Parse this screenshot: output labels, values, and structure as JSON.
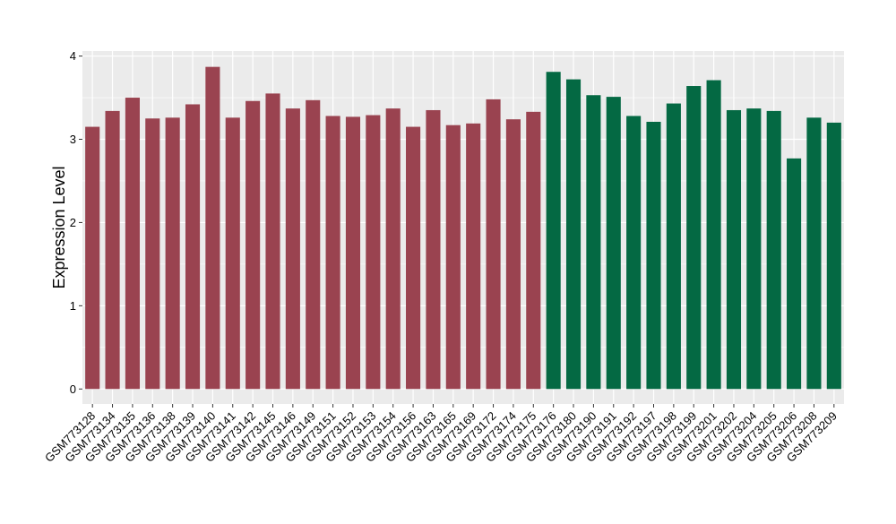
{
  "chart_data": {
    "type": "bar",
    "ylabel": "Expression Level",
    "xlabel": "",
    "title": "",
    "ylim": [
      -0.18,
      4.06
    ],
    "yticks": [
      0,
      1,
      2,
      3,
      4
    ],
    "grid": true,
    "colors": {
      "group_a": "#9a4350",
      "group_b": "#046943",
      "panel": "#ebebeb",
      "grid": "#ffffff"
    },
    "categories": [
      "GSM773128",
      "GSM773134",
      "GSM773135",
      "GSM773136",
      "GSM773138",
      "GSM773139",
      "GSM773140",
      "GSM773141",
      "GSM773142",
      "GSM773145",
      "GSM773146",
      "GSM773149",
      "GSM773151",
      "GSM773152",
      "GSM773153",
      "GSM773154",
      "GSM773156",
      "GSM773163",
      "GSM773165",
      "GSM773169",
      "GSM773172",
      "GSM773174",
      "GSM773175",
      "GSM773176",
      "GSM773180",
      "GSM773190",
      "GSM773191",
      "GSM773192",
      "GSM773197",
      "GSM773198",
      "GSM773199",
      "GSM773201",
      "GSM773202",
      "GSM773204",
      "GSM773205",
      "GSM773206",
      "GSM773208",
      "GSM773209"
    ],
    "values": [
      3.15,
      3.34,
      3.5,
      3.25,
      3.26,
      3.42,
      3.87,
      3.26,
      3.46,
      3.55,
      3.37,
      3.47,
      3.28,
      3.27,
      3.29,
      3.37,
      3.15,
      3.35,
      3.17,
      3.19,
      3.48,
      3.24,
      3.33,
      3.81,
      3.72,
      3.53,
      3.51,
      3.28,
      3.21,
      3.43,
      3.64,
      3.71,
      3.35,
      3.37,
      3.34,
      2.77,
      3.26,
      3.2
    ],
    "group": [
      "a",
      "a",
      "a",
      "a",
      "a",
      "a",
      "a",
      "a",
      "a",
      "a",
      "a",
      "a",
      "a",
      "a",
      "a",
      "a",
      "a",
      "a",
      "a",
      "a",
      "a",
      "a",
      "a",
      "b",
      "b",
      "b",
      "b",
      "b",
      "b",
      "b",
      "b",
      "b",
      "b",
      "b",
      "b",
      "b",
      "b",
      "b"
    ]
  }
}
